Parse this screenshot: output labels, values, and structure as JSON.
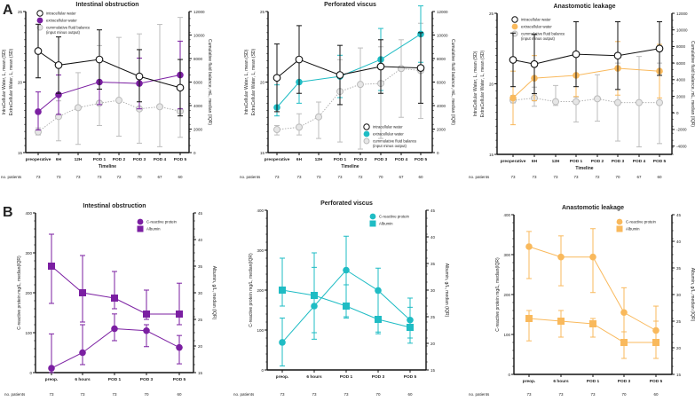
{
  "panel_labels": [
    "A",
    "B"
  ],
  "chart_data": [
    {
      "type": "line",
      "title": "Intestinal obstruction",
      "xlabel": "Timeline",
      "categories": [
        "preoperative",
        "6H",
        "12H",
        "POD 1",
        "POD 2",
        "POD 3",
        "POD 4",
        "POD 5"
      ],
      "n_patients_label": "no. patients",
      "n_patients": [
        "73",
        "73",
        "73",
        "73",
        "72",
        "70",
        "67",
        "60"
      ],
      "left_axis": {
        "label": [
          "IntraCellular Water, L, mean (SD)",
          "ExtraCellular Water, L, mean (SD)"
        ],
        "range": [
          15,
          25
        ],
        "ticks": [
          15,
          20,
          25
        ]
      },
      "right_axis": {
        "label": "Cumulative fluid balance, mL, median (IQR)",
        "range": [
          0,
          12000
        ],
        "ticks": [
          0,
          2000,
          4000,
          6000,
          8000,
          10000,
          12000
        ]
      },
      "legend": "top-left",
      "series": [
        {
          "name": "cummulative fluid balance",
          "name2": "(input minus output)",
          "axis": "right",
          "style": "cumulative",
          "color": "#b8b8b8",
          "values": [
            1760,
            3070,
            3820,
            4200,
            4450,
            3720,
            3900,
            3520
          ],
          "low": [
            1500,
            1000,
            700,
            2300,
            1400,
            800,
            500,
            1300
          ],
          "high": [
            2100,
            4400,
            6800,
            9100,
            9800,
            10100,
            10900,
            11500
          ]
        },
        {
          "name": "extracellular water",
          "axis": "left",
          "style": "filled",
          "color": "#7b1fa2",
          "values": [
            17.9,
            19.1,
            null,
            20.0,
            null,
            19.9,
            null,
            20.5
          ],
          "low": [
            16.6,
            17.7,
            null,
            18.4,
            null,
            18.1,
            null,
            18.1
          ],
          "high": [
            19.3,
            20.5,
            null,
            21.6,
            null,
            21.7,
            null,
            22.9
          ]
        },
        {
          "name": "intracellular water",
          "axis": "left",
          "style": "open",
          "color": "#111111",
          "values": [
            22.2,
            21.2,
            null,
            21.6,
            null,
            20.4,
            null,
            19.6
          ],
          "low": [
            20.3,
            19.2,
            null,
            19.5,
            null,
            18.6,
            null,
            17.6
          ],
          "high": [
            24.1,
            23.2,
            null,
            23.7,
            null,
            22.3,
            null,
            21.6
          ]
        }
      ]
    },
    {
      "type": "line",
      "title": "Perforated viscus",
      "xlabel": "Timeline",
      "categories": [
        "preoperative",
        "6H",
        "12H",
        "POD 1",
        "POD 2",
        "POD 3",
        "POD 4",
        "POD 5"
      ],
      "n_patients_label": "no. patients",
      "n_patients": [
        "73",
        "73",
        "73",
        "73",
        "72",
        "70",
        "67",
        "60"
      ],
      "left_axis": {
        "label": [
          "IntraCellular Water, L, mean (SD)",
          "ExtraCellular Water, L, mean (SD)"
        ],
        "range": [
          15,
          25
        ],
        "ticks": [
          15,
          20,
          25
        ]
      },
      "right_axis": {
        "label": "Cumulative fluid balance, mL, median (IQR)",
        "range": [
          0,
          12000
        ],
        "ticks": [
          0,
          2000,
          4000,
          6000,
          8000,
          10000,
          12000
        ]
      },
      "legend": "bottom-right",
      "series": [
        {
          "name": "cummulative fluid balance",
          "name2": "(input minus output)",
          "axis": "right",
          "style": "cumulative",
          "color": "#b8b8b8",
          "values": [
            1960,
            2160,
            3040,
            5200,
            5800,
            5880,
            7150,
            6980
          ],
          "low": [
            1500,
            1500,
            1200,
            900,
            300,
            1200,
            3000,
            2900
          ],
          "high": [
            2300,
            3300,
            4300,
            7900,
            8900,
            9000,
            9600,
            11000
          ]
        },
        {
          "name": "extracellular water",
          "axis": "left",
          "style": "filled",
          "color": "#1fbcc4",
          "values": [
            18.2,
            20.0,
            null,
            20.4,
            null,
            21.6,
            null,
            23.4
          ],
          "low": [
            17.6,
            18.5,
            null,
            18.9,
            null,
            19.4,
            null,
            21.4
          ],
          "high": [
            19.8,
            21.5,
            null,
            21.9,
            null,
            23.8,
            null,
            25.4
          ]
        },
        {
          "name": "intracellular water",
          "axis": "left",
          "style": "open",
          "color": "#111111",
          "values": [
            20.3,
            21.6,
            null,
            20.5,
            null,
            21.1,
            null,
            21.0
          ],
          "low": [
            17.9,
            19.2,
            null,
            18.4,
            null,
            19.2,
            null,
            18.5
          ],
          "high": [
            22.7,
            24.0,
            null,
            22.6,
            null,
            23.0,
            null,
            23.5
          ]
        }
      ]
    },
    {
      "type": "line",
      "title": "Anastomotic leakage",
      "xlabel": "Timeline",
      "categories": [
        "preoperative",
        "6H",
        "12H",
        "POD 1",
        "POD 2",
        "POD 3",
        "POD 4",
        "POD 5"
      ],
      "n_patients_label": "no. patients",
      "n_patients": [
        "73",
        "73",
        "73",
        "73",
        "72",
        "70",
        "67",
        "60"
      ],
      "left_axis": {
        "label": [
          "IntraCellular Water, L, mean (SD)",
          "ExtraCellular Water, L, mean (SD)"
        ],
        "range": [
          15,
          25
        ],
        "ticks": [
          15,
          20,
          25
        ]
      },
      "right_axis": {
        "label": "Cumulative fluid balance, mL, median (IQR)",
        "range": [
          -5000,
          12000
        ],
        "ticks": [
          -4000,
          -2000,
          0,
          2000,
          4000,
          6000,
          8000,
          10000,
          12000
        ]
      },
      "legend": "top-left",
      "series": [
        {
          "name": "cummulative fluid balance",
          "name2": "(input minus output)",
          "axis": "right",
          "style": "cumulative",
          "color": "#b8b8b8",
          "values": [
            1530,
            1780,
            1350,
            1350,
            1700,
            1240,
            1240,
            1240
          ],
          "low": [
            1200,
            800,
            900,
            -1100,
            -1000,
            -3400,
            -4100,
            -3700
          ],
          "high": [
            2100,
            3100,
            3300,
            1900,
            4600,
            6000,
            6800,
            6000
          ]
        },
        {
          "name": "extracellular water",
          "axis": "left",
          "style": "filled",
          "color": "#f9b95c",
          "values": [
            19.0,
            20.4,
            null,
            20.6,
            null,
            21.1,
            null,
            20.9
          ],
          "low": [
            17.1,
            18.8,
            null,
            19.1,
            null,
            19.2,
            null,
            19.0
          ],
          "high": [
            20.9,
            22.0,
            null,
            22.1,
            null,
            23.0,
            null,
            22.8
          ]
        },
        {
          "name": "intracellular water",
          "axis": "left",
          "style": "open",
          "color": "#111111",
          "values": [
            21.7,
            21.4,
            null,
            22.1,
            null,
            22.0,
            null,
            22.5
          ],
          "low": [
            19.8,
            19.3,
            null,
            19.8,
            null,
            19.6,
            null,
            20.6
          ],
          "high": [
            23.6,
            23.5,
            null,
            24.4,
            null,
            24.4,
            null,
            24.4
          ]
        }
      ]
    },
    {
      "type": "line",
      "title": "Intestinal obstruction",
      "xlabel": "",
      "categories": [
        "preop.",
        "6 hours",
        "POD 1",
        "POD 3",
        "POD 5"
      ],
      "n_patients_label": "no. patients",
      "n_patients": [
        "73",
        "73",
        "73",
        "70",
        "60"
      ],
      "left_axis": {
        "label": [
          "C-reactive protein mg/L, median(IQR)"
        ],
        "range": [
          0,
          400
        ],
        "ticks": [
          0,
          100,
          200,
          300,
          400
        ]
      },
      "right_axis": {
        "label": "Albumin, g/L, median (IQR)",
        "range": [
          15,
          45
        ],
        "ticks": [
          15,
          20,
          25,
          30,
          35,
          40,
          45
        ]
      },
      "legend": "top-right",
      "series": [
        {
          "name": "C-reactive protein",
          "axis": "left",
          "style": "circle",
          "color": "#7b1fa2",
          "values": [
            11,
            50,
            110,
            105,
            63
          ],
          "low": [
            0,
            20,
            80,
            65,
            22
          ],
          "high": [
            97,
            120,
            147,
            120,
            93
          ]
        },
        {
          "name": "Albumin",
          "axis": "right",
          "style": "square",
          "color": "#7b1fa2",
          "values": [
            35,
            30,
            29,
            26,
            26
          ],
          "low": [
            28,
            24.5,
            27,
            25,
            24
          ],
          "high": [
            41,
            37,
            34,
            30.5,
            31.8
          ]
        }
      ]
    },
    {
      "type": "line",
      "title": "Perforated viscus",
      "xlabel": "",
      "categories": [
        "preop.",
        "6 hours",
        "POD 1",
        "POD 3",
        "POD 5"
      ],
      "n_patients_label": "no. patients",
      "n_patients": [
        "73",
        "73",
        "73",
        "70",
        "60"
      ],
      "left_axis": {
        "label": [
          "C-reactive protein mg/L, median(IQR)"
        ],
        "range": [
          0,
          400
        ],
        "ticks": [
          0,
          100,
          200,
          300,
          400
        ]
      },
      "right_axis": {
        "label": "Albumin, g/L, median (IQR)",
        "range": [
          15,
          45
        ],
        "ticks": [
          15,
          20,
          25,
          30,
          35,
          40,
          45
        ]
      },
      "legend": "top-right",
      "series": [
        {
          "name": "C-reactive protein",
          "axis": "left",
          "style": "circle",
          "color": "#1fbcc4",
          "values": [
            69,
            160,
            250,
            199,
            125
          ],
          "low": [
            10,
            77,
            130,
            95,
            67
          ],
          "high": [
            130,
            257,
            335,
            255,
            157
          ]
        },
        {
          "name": "Albumin",
          "axis": "right",
          "style": "square",
          "color": "#1fbcc4",
          "values": [
            30,
            29,
            27,
            24.5,
            23
          ],
          "low": [
            27,
            22,
            25,
            21.8,
            21
          ],
          "high": [
            36,
            37,
            31,
            29.5,
            28.5
          ]
        }
      ]
    },
    {
      "type": "line",
      "title": "Anastomotic leakage",
      "xlabel": "",
      "categories": [
        "preop.",
        "6 hours",
        "POD 1",
        "POD 3",
        "POD 5"
      ],
      "n_patients_label": "no. patients",
      "n_patients": [
        "73",
        "73",
        "73",
        "70",
        "60"
      ],
      "left_axis": {
        "label": [
          "C-reactive protein mg/L, median(IQR)"
        ],
        "range": [
          0,
          400
        ],
        "ticks": [
          0,
          100,
          200,
          300,
          400
        ]
      },
      "right_axis": {
        "label": "Albumin, g/L, median (IQR)",
        "range": [
          15,
          45
        ],
        "ticks": [
          15,
          20,
          25,
          30,
          35,
          40,
          45
        ]
      },
      "legend": "top-right",
      "series": [
        {
          "name": "C-reactive protein",
          "axis": "left",
          "style": "circle",
          "color": "#f9b95c",
          "values": [
            320,
            294,
            294,
            155,
            110
          ],
          "low": [
            240,
            222,
            205,
            40,
            40
          ],
          "high": [
            358,
            347,
            365,
            217,
            171
          ]
        },
        {
          "name": "Albumin",
          "axis": "right",
          "style": "square",
          "color": "#f9b95c",
          "values": [
            25.5,
            25,
            24.5,
            21,
            21
          ],
          "low": [
            21.3,
            22,
            22,
            18,
            18
          ],
          "high": [
            27,
            27,
            25.5,
            23,
            25
          ]
        }
      ]
    }
  ]
}
